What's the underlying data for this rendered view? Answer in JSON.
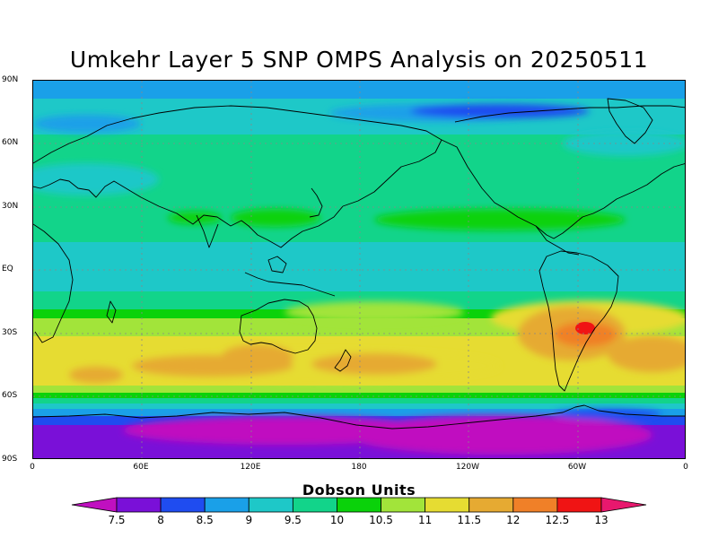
{
  "title": "Umkehr Layer 5 SNP OMPS Analysis on 20250511",
  "lat_labels": [
    "90N",
    "60N",
    "30N",
    "EQ",
    "30S",
    "60S",
    "90S"
  ],
  "lon_labels": [
    "0",
    "60E",
    "120E",
    "180",
    "120W",
    "60W",
    "0"
  ],
  "colorbar": {
    "title": "Dobson Units",
    "labels": [
      "7.5",
      "8",
      "8.5",
      "9",
      "9.5",
      "10",
      "10.5",
      "11",
      "11.5",
      "12",
      "12.5",
      "13"
    ],
    "colors": [
      "#c010c0",
      "#7a10d8",
      "#1f4cf0",
      "#1aa0e8",
      "#1ec8c8",
      "#12d48a",
      "#0ad20a",
      "#a2e43a",
      "#e6dc32",
      "#e6aa32",
      "#f08028",
      "#f01414",
      "#e8186e"
    ]
  },
  "chart_data": {
    "type": "heatmap",
    "title": "Umkehr Layer 5 SNP OMPS Analysis on 20250511",
    "unit": "Dobson Units",
    "x_range": [
      "0",
      "0"
    ],
    "y_range": [
      "90S",
      "90N"
    ],
    "levels": [
      7.5,
      8,
      8.5,
      9,
      9.5,
      10,
      10.5,
      11,
      11.5,
      12,
      12.5,
      13
    ],
    "grid": true
  }
}
